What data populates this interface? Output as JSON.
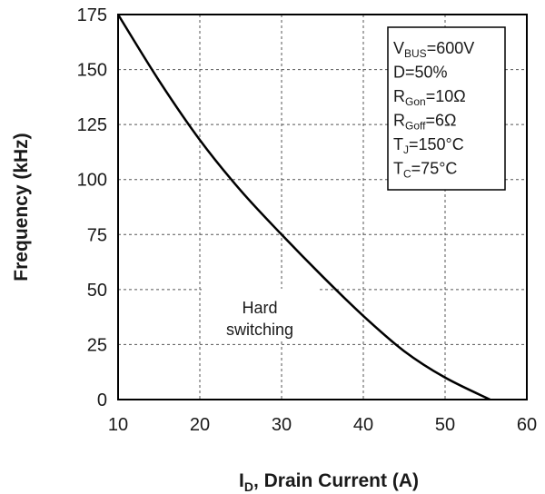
{
  "chart_data": {
    "type": "line",
    "xlabel": {
      "main": "I",
      "sub": "D",
      "rest": ", Drain Current (A)"
    },
    "ylabel": "Frequency (kHz)",
    "xlim": [
      10,
      60
    ],
    "ylim": [
      0,
      175
    ],
    "xticks": [
      "10",
      "20",
      "30",
      "40",
      "50",
      "60"
    ],
    "yticks": [
      "0",
      "25",
      "50",
      "75",
      "100",
      "125",
      "150",
      "175"
    ],
    "grid": true,
    "series": [
      {
        "x": [
          10,
          15,
          20,
          25,
          30,
          35,
          40,
          45,
          50,
          55.5
        ],
        "y": [
          175,
          145,
          118,
          95,
          75,
          56,
          38,
          22,
          10,
          0
        ]
      }
    ],
    "annotation": {
      "line1": "Hard",
      "line2": "switching"
    },
    "conditions": [
      {
        "main": "V",
        "sub": "BUS",
        "rest": "=600V"
      },
      {
        "main": "D=50%",
        "sub": "",
        "rest": ""
      },
      {
        "main": "R",
        "sub": "Gon",
        "rest": "=10Ω"
      },
      {
        "main": "R",
        "sub": "Goff",
        "rest": "=6Ω"
      },
      {
        "main": "T",
        "sub": "J",
        "rest": "=150°C"
      },
      {
        "main": "T",
        "sub": "C",
        "rest": "=75°C"
      }
    ],
    "line_color": "#000000"
  }
}
